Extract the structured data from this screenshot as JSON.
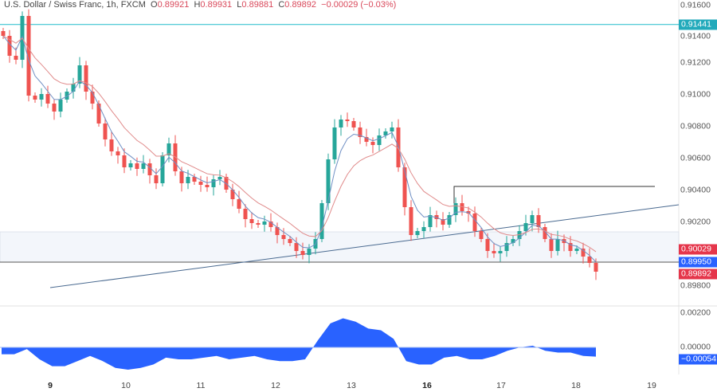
{
  "header": {
    "symbol": "U.S. Dollar / Swiss Franc, 1h, FXCM",
    "open_label": "O",
    "open": "0.89921",
    "high_label": "H",
    "high": "0.89931",
    "low_label": "L",
    "low": "0.89881",
    "close_label": "C",
    "close": "0.89892",
    "change": "−0.00029 (−0.03%)"
  },
  "price_axis": {
    "ticks": [
      "0.91600",
      "0.91400",
      "0.91200",
      "0.91000",
      "0.90800",
      "0.90600",
      "0.90400",
      "0.90200",
      "0.89800"
    ]
  },
  "price_tags": [
    {
      "label": "0.91441",
      "value": 0.91441,
      "color": "#22aabb"
    },
    {
      "label": "0.90029",
      "value": 0.90029,
      "color": "#e5364b"
    },
    {
      "label": "0.89950",
      "value": 0.8995,
      "color": "#2962ff"
    },
    {
      "label": "0.89892",
      "value": 0.89892,
      "color": "#e5364b"
    }
  ],
  "osc_axis": {
    "ticks": [
      "0.00200",
      "0.00000"
    ],
    "tag": {
      "label": "−0.00054",
      "value": -0.00054,
      "color": "#2962ff"
    }
  },
  "time_axis": [
    {
      "label": "9",
      "bold": true
    },
    {
      "label": "10"
    },
    {
      "label": "11"
    },
    {
      "label": "12"
    },
    {
      "label": "13"
    },
    {
      "label": "16",
      "bold": true
    },
    {
      "label": "17"
    },
    {
      "label": "18"
    },
    {
      "label": "19"
    }
  ],
  "colors": {
    "up": "#26a69a",
    "down": "#ef5350",
    "ma_fast": "#6f8fc4",
    "ma_slow": "#e08a8a",
    "osc": "#2962ff",
    "resistance": "#22bbcc",
    "trendline": "#4a6a90"
  },
  "drawings": {
    "resistance_level": 0.91441,
    "support_level": 0.8995,
    "zone": [
      0.8995,
      0.9014
    ],
    "swing_high_level": 0.90425,
    "trendline": [
      {
        "day": "9",
        "price": 0.8979
      },
      {
        "day": "19",
        "price": 0.9031
      }
    ]
  },
  "chart_data": {
    "type": "candlestick",
    "timeframe": "1h",
    "closes": [
      0.9137,
      0.91245,
      0.9122,
      0.91495,
      0.90995,
      0.9097,
      0.91005,
      0.90945,
      0.90895,
      0.9097,
      0.9102,
      0.9107,
      0.91185,
      0.9102,
      0.90945,
      0.9082,
      0.9072,
      0.90645,
      0.9062,
      0.90545,
      0.9057,
      0.90535,
      0.9057,
      0.90495,
      0.90445,
      0.9062,
      0.90695,
      0.9052,
      0.90445,
      0.90485,
      0.90455,
      0.90435,
      0.9042,
      0.9047,
      0.90485,
      0.90405,
      0.90345,
      0.90285,
      0.9022,
      0.90195,
      0.90185,
      0.90205,
      0.9017,
      0.9012,
      0.90095,
      0.9007,
      0.9002,
      0.89995,
      0.90035,
      0.90095,
      0.9032,
      0.90595,
      0.90795,
      0.90845,
      0.90835,
      0.90795,
      0.90735,
      0.90705,
      0.90685,
      0.90745,
      0.9077,
      0.90795,
      0.90545,
      0.90295,
      0.9012,
      0.90145,
      0.9017,
      0.90245,
      0.9022,
      0.90185,
      0.90245,
      0.9032,
      0.9027,
      0.90255,
      0.90145,
      0.90095,
      0.9002,
      0.90005,
      0.9002,
      0.9007,
      0.90095,
      0.90145,
      0.90195,
      0.90245,
      0.9017,
      0.90095,
      0.9002,
      0.90095,
      0.9007,
      0.9002,
      0.90035,
      0.89985,
      0.89945,
      0.8989
    ],
    "oscillator": [
      -0.0004,
      -0.0004,
      -0.0001,
      -0.0007,
      -0.0011,
      -0.0011,
      -0.0008,
      -0.0005,
      -0.0008,
      -0.0012,
      -0.0013,
      -0.0012,
      -0.001,
      -0.0006,
      -0.0007,
      -0.0007,
      -0.0006,
      -0.0005,
      -0.0007,
      -0.0006,
      -0.0005,
      -0.0007,
      -0.0008,
      -0.0008,
      -0.0007,
      0.0004,
      0.0014,
      0.0017,
      0.0015,
      0.0011,
      0.001,
      0.0005,
      -0.0008,
      -0.001,
      -0.001,
      -0.0006,
      -0.0005,
      -0.0007,
      -0.0007,
      -0.0005,
      -0.0002,
      0.0,
      0.0001,
      -0.0002,
      -0.0003,
      -0.0003,
      -0.0005,
      -0.00054
    ],
    "ylim": [
      0.8972,
      0.9165
    ],
    "osc_ylim": [
      -0.0016,
      0.0024
    ]
  }
}
